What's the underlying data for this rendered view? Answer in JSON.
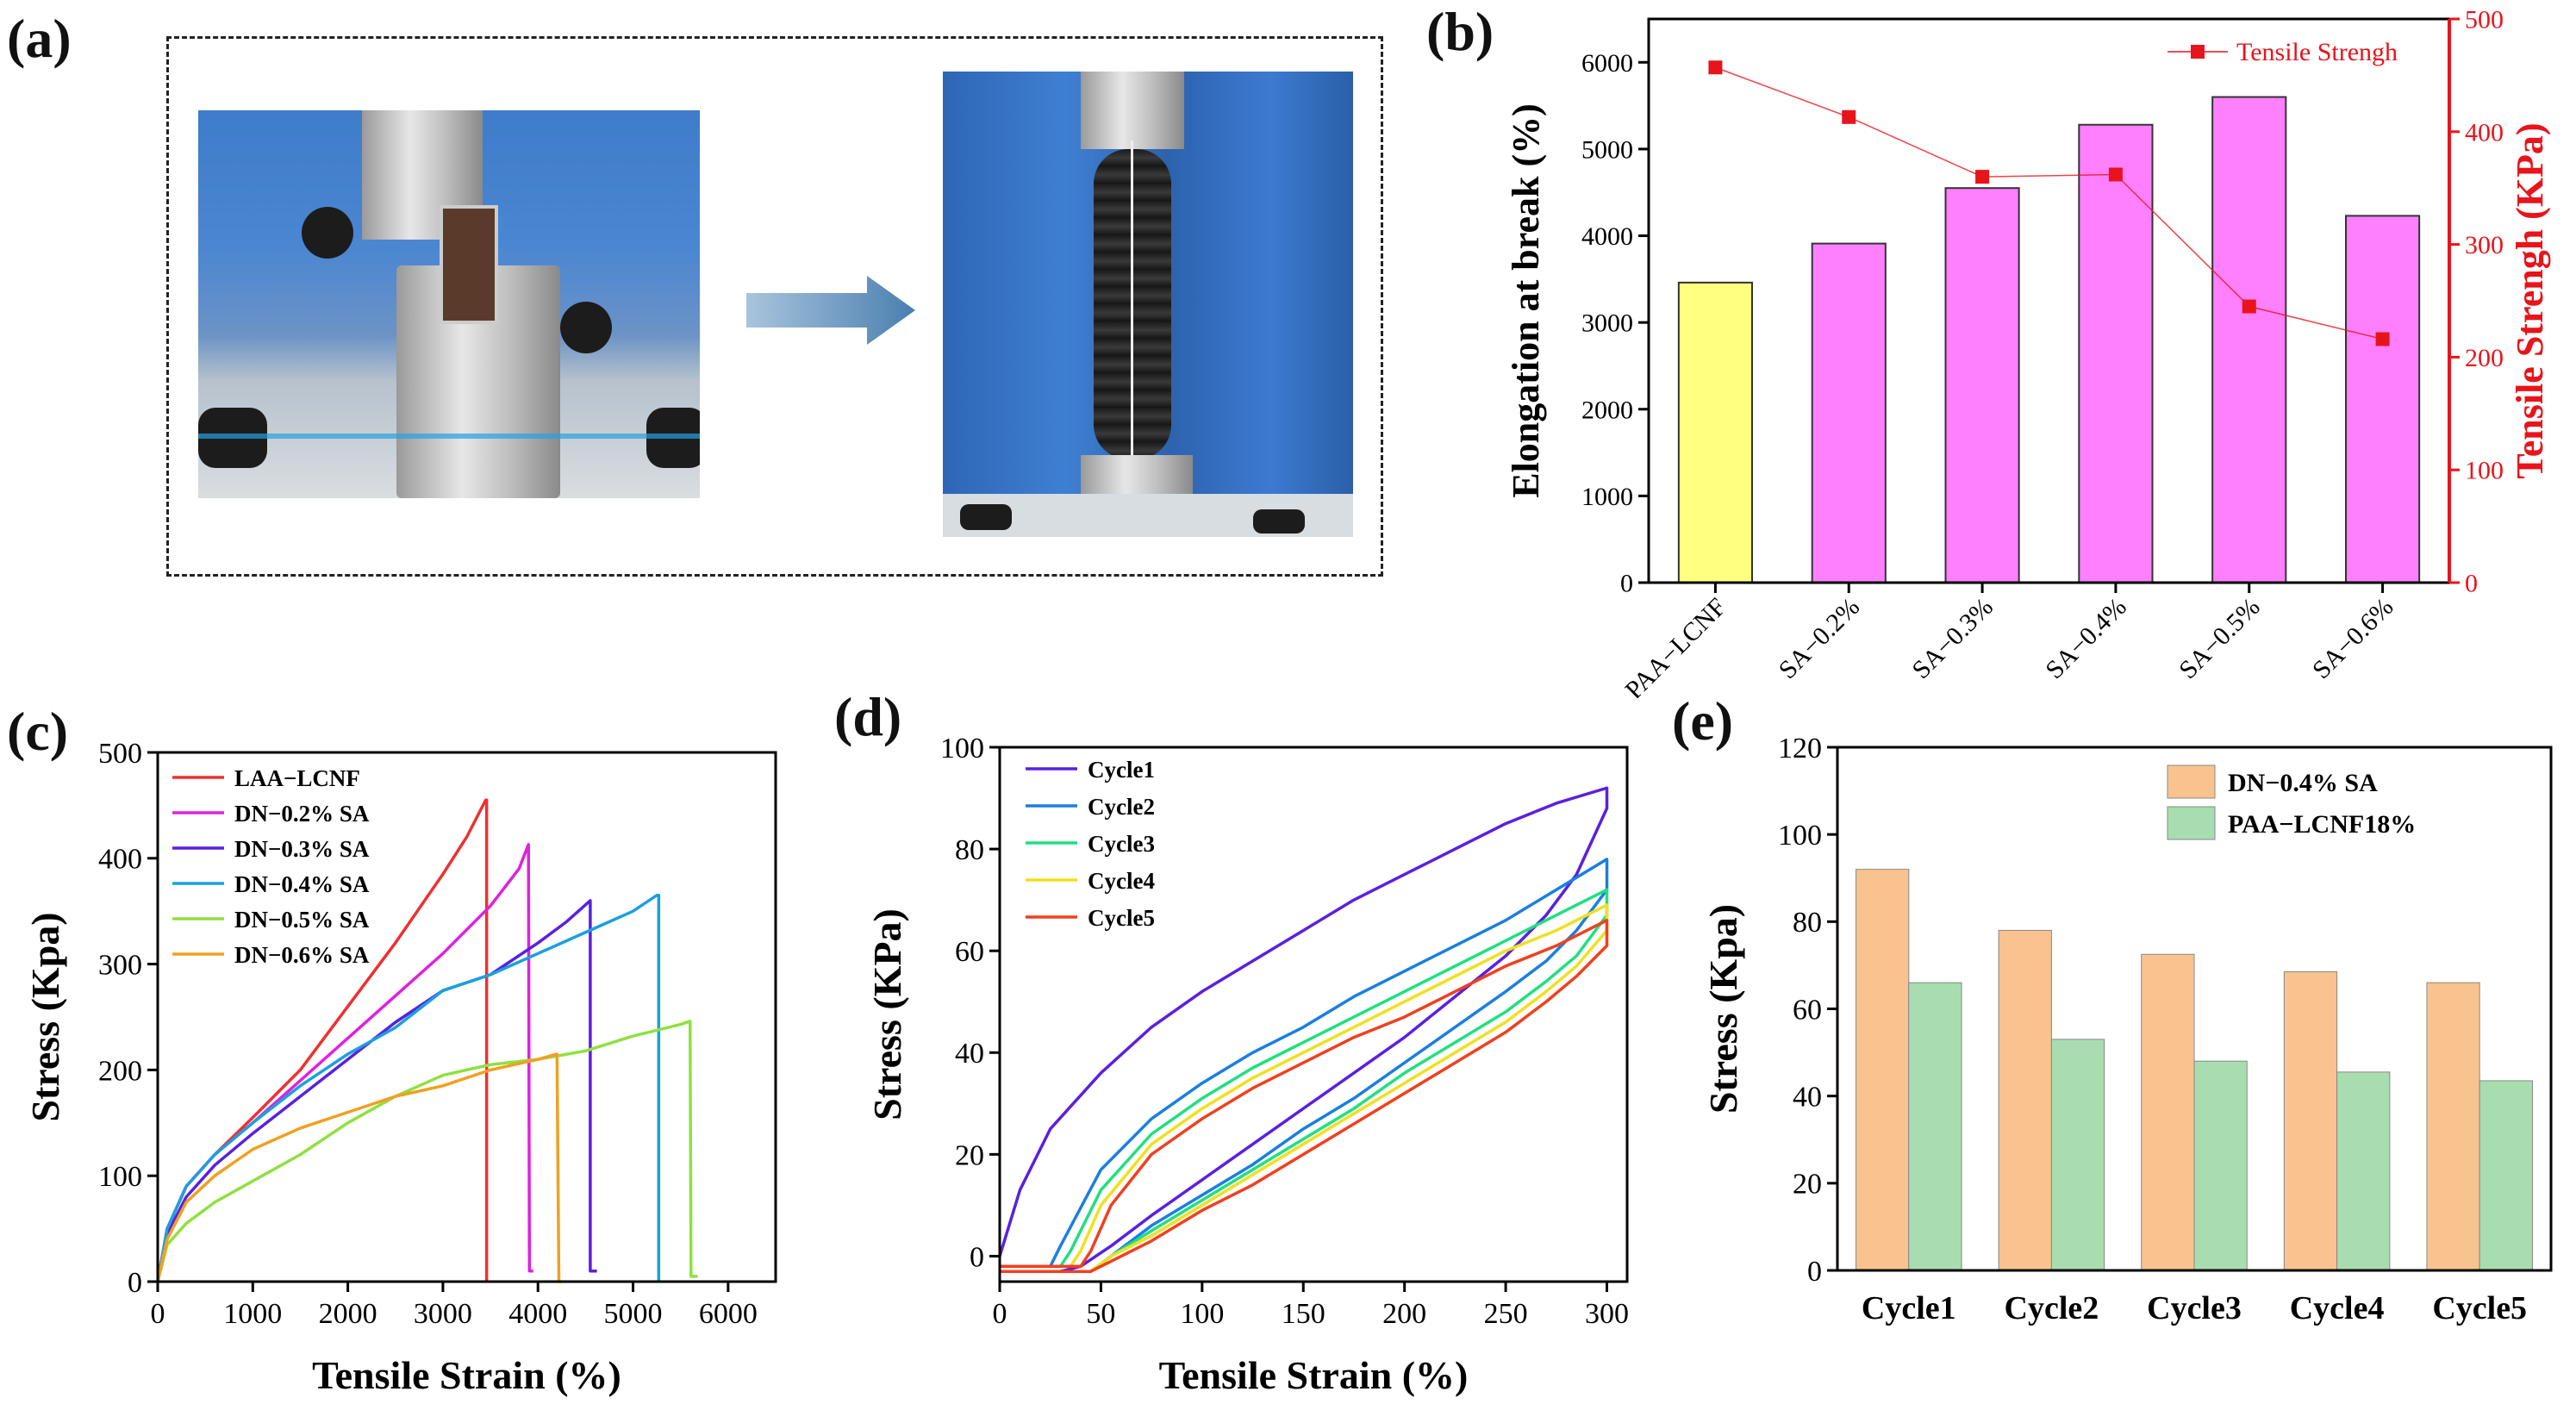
{
  "panels": {
    "a": "(a)",
    "b": "(b)",
    "c": "(c)",
    "d": "(d)",
    "e": "(e)"
  },
  "colors": {
    "tensile_marker": "#e8141b",
    "bar_yellow": "#ffff80",
    "bar_magenta": "#ff80ff",
    "bar_orange": "#f8c38e",
    "bar_green": "#a8ddb0"
  },
  "chart_data": [
    {
      "id": "b",
      "type": "bar",
      "categories": [
        "PAA−LCNF",
        "SA−0.2%",
        "SA−0.3%",
        "SA−0.4%",
        "SA−0.5%",
        "SA−0.6%"
      ],
      "values": [
        3460,
        3910,
        4550,
        5280,
        5600,
        4230
      ],
      "bar_colors": [
        "#ffff80",
        "#ff80ff",
        "#ff80ff",
        "#ff80ff",
        "#ff80ff",
        "#ff80ff"
      ],
      "ylabel": "Elongation at break (%)",
      "ylim": [
        0,
        6500
      ],
      "yticks": [
        0,
        1000,
        2000,
        3000,
        4000,
        5000,
        6000
      ],
      "secondary": {
        "type": "line",
        "name": "Tensile Strengh",
        "ylabel": "Tensile Strengh (KPa)",
        "ylim": [
          0,
          500
        ],
        "yticks": [
          0,
          100,
          200,
          300,
          400,
          500
        ],
        "values": [
          457,
          413,
          360,
          362,
          245,
          216
        ],
        "color": "#e8141b"
      },
      "legend": "top-right"
    },
    {
      "id": "c",
      "type": "line",
      "xlabel": "Tensile Strain (%)",
      "ylabel": "Stress (Kpa)",
      "xlim": [
        0,
        6500
      ],
      "ylim": [
        0,
        500
      ],
      "xticks": [
        0,
        1000,
        2000,
        3000,
        4000,
        5000,
        6000
      ],
      "yticks": [
        0,
        100,
        200,
        300,
        400,
        500
      ],
      "legend": "top-left",
      "series": [
        {
          "name": "LAA−LCNF",
          "color": "#ee3030",
          "x": [
            0,
            100,
            300,
            600,
            1000,
            1500,
            2000,
            2500,
            3000,
            3250,
            3450,
            3460,
            3460
          ],
          "y": [
            0,
            50,
            90,
            120,
            155,
            200,
            260,
            320,
            385,
            420,
            455,
            455,
            0
          ]
        },
        {
          "name": "DN−0.2% SA",
          "color": "#e020e0",
          "x": [
            0,
            100,
            300,
            600,
            1000,
            1500,
            2000,
            2500,
            3000,
            3500,
            3800,
            3900,
            3910,
            3950
          ],
          "y": [
            0,
            50,
            90,
            120,
            150,
            190,
            230,
            270,
            310,
            355,
            390,
            413,
            10,
            10
          ]
        },
        {
          "name": "DN−0.3% SA",
          "color": "#5a20e0",
          "x": [
            0,
            100,
            300,
            600,
            1000,
            1500,
            2000,
            2500,
            3000,
            3500,
            4000,
            4300,
            4550,
            4550,
            4620
          ],
          "y": [
            0,
            45,
            80,
            110,
            140,
            175,
            210,
            245,
            275,
            290,
            320,
            340,
            360,
            10,
            10
          ]
        },
        {
          "name": "DN−0.4% SA",
          "color": "#1aa0e0",
          "x": [
            0,
            100,
            300,
            600,
            1000,
            1500,
            2000,
            2500,
            3000,
            3500,
            4000,
            4500,
            5000,
            5250,
            5270,
            5270
          ],
          "y": [
            0,
            50,
            90,
            120,
            150,
            185,
            215,
            240,
            275,
            290,
            310,
            330,
            350,
            365,
            365,
            0
          ]
        },
        {
          "name": "DN−0.5% SA",
          "color": "#90e040",
          "x": [
            0,
            100,
            300,
            600,
            1000,
            1500,
            2000,
            2500,
            3000,
            3500,
            4000,
            4500,
            5000,
            5500,
            5600,
            5610,
            5680
          ],
          "y": [
            0,
            35,
            55,
            75,
            95,
            120,
            150,
            175,
            195,
            205,
            210,
            218,
            232,
            243,
            246,
            5,
            5
          ]
        },
        {
          "name": "DN−0.6% SA",
          "color": "#f0a020",
          "x": [
            0,
            100,
            300,
            600,
            1000,
            1500,
            2000,
            2500,
            3000,
            3500,
            4000,
            4200,
            4220,
            4250
          ],
          "y": [
            0,
            40,
            75,
            100,
            125,
            145,
            160,
            175,
            185,
            200,
            210,
            215,
            0,
            0
          ]
        }
      ]
    },
    {
      "id": "d",
      "type": "line",
      "xlabel": "Tensile Strain (%)",
      "ylabel": "Stress (KPa)",
      "xlim": [
        0,
        310
      ],
      "ylim": [
        -5,
        100
      ],
      "xticks": [
        0,
        50,
        100,
        150,
        200,
        250,
        300
      ],
      "yticks": [
        0,
        20,
        40,
        60,
        80,
        100
      ],
      "legend": "top-left",
      "series": [
        {
          "name": "Cycle1",
          "color": "#5a20e0",
          "x": [
            0,
            10,
            25,
            50,
            75,
            100,
            125,
            150,
            175,
            200,
            225,
            250,
            275,
            300,
            300,
            285,
            270,
            250,
            225,
            200,
            175,
            150,
            125,
            100,
            75,
            55,
            40,
            30,
            0
          ],
          "y": [
            0,
            13,
            25,
            36,
            45,
            52,
            58,
            64,
            70,
            75,
            80,
            85,
            89,
            92,
            88,
            75,
            67,
            59,
            51,
            43,
            36,
            29,
            22,
            15,
            8,
            2,
            -2,
            -3,
            -3
          ]
        },
        {
          "name": "Cycle2",
          "color": "#1a7fe0",
          "x": [
            0,
            25,
            30,
            50,
            75,
            100,
            125,
            150,
            175,
            200,
            225,
            250,
            275,
            300,
            300,
            285,
            270,
            250,
            225,
            200,
            175,
            150,
            125,
            100,
            75,
            55,
            45,
            0
          ],
          "y": [
            -2,
            -2,
            2,
            17,
            27,
            34,
            40,
            45,
            51,
            56,
            61,
            66,
            72,
            78,
            72,
            64,
            58,
            52,
            45,
            38,
            31,
            25,
            18,
            12,
            6,
            0,
            -3,
            -3
          ]
        },
        {
          "name": "Cycle3",
          "color": "#20e080",
          "x": [
            0,
            30,
            35,
            50,
            75,
            100,
            125,
            150,
            175,
            200,
            225,
            250,
            275,
            300,
            300,
            285,
            270,
            250,
            225,
            200,
            175,
            150,
            125,
            100,
            75,
            55,
            45,
            0
          ],
          "y": [
            -2,
            -2,
            1,
            13,
            24,
            31,
            37,
            42,
            47,
            52,
            57,
            62,
            67,
            72,
            67,
            59,
            54,
            48,
            42,
            36,
            29,
            23,
            17,
            11,
            5,
            0,
            -3,
            -3
          ]
        },
        {
          "name": "Cycle4",
          "color": "#f0e020",
          "x": [
            0,
            35,
            40,
            50,
            75,
            100,
            125,
            150,
            175,
            200,
            225,
            250,
            275,
            300,
            300,
            285,
            270,
            250,
            225,
            200,
            175,
            150,
            125,
            100,
            75,
            55,
            45,
            0
          ],
          "y": [
            -2,
            -2,
            1,
            10,
            22,
            29,
            35,
            40,
            45,
            50,
            55,
            60,
            64,
            69,
            64,
            57,
            52,
            46,
            40,
            34,
            28,
            22,
            16,
            10,
            4,
            0,
            -3,
            -3
          ]
        },
        {
          "name": "Cycle5",
          "color": "#f04020",
          "x": [
            0,
            40,
            45,
            55,
            75,
            100,
            125,
            150,
            175,
            200,
            225,
            250,
            275,
            300,
            300,
            285,
            270,
            250,
            225,
            200,
            175,
            150,
            125,
            100,
            75,
            55,
            45,
            0
          ],
          "y": [
            -2,
            -2,
            1,
            10,
            20,
            27,
            33,
            38,
            43,
            47,
            52,
            57,
            61,
            66,
            61,
            55,
            50,
            44,
            38,
            32,
            26,
            20,
            14,
            9,
            3,
            -1,
            -3,
            -3
          ]
        }
      ]
    },
    {
      "id": "e",
      "type": "bar",
      "categories": [
        "Cycle1",
        "Cycle2",
        "Cycle3",
        "Cycle4",
        "Cycle5"
      ],
      "ylabel": "Stress (Kpa)",
      "ylim": [
        0,
        120
      ],
      "yticks": [
        0,
        20,
        40,
        60,
        80,
        100,
        120
      ],
      "legend": "top-right",
      "series": [
        {
          "name": "DN−0.4% SA",
          "color": "#f8c38e",
          "values": [
            92,
            78,
            72.5,
            68.5,
            66
          ]
        },
        {
          "name": "PAA−LCNF18%",
          "color": "#a8ddb0",
          "values": [
            66,
            53,
            48,
            45.5,
            43.5
          ]
        }
      ]
    }
  ]
}
